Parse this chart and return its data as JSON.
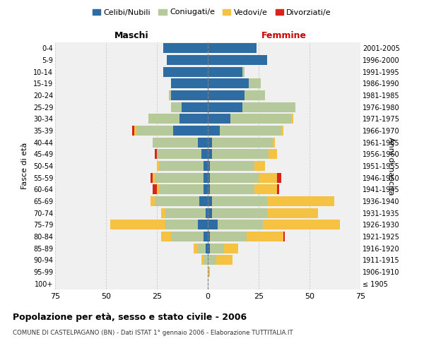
{
  "age_groups": [
    "100+",
    "95-99",
    "90-94",
    "85-89",
    "80-84",
    "75-79",
    "70-74",
    "65-69",
    "60-64",
    "55-59",
    "50-54",
    "45-49",
    "40-44",
    "35-39",
    "30-34",
    "25-29",
    "20-24",
    "15-19",
    "10-14",
    "5-9",
    "0-4"
  ],
  "birth_years": [
    "≤ 1905",
    "1906-1910",
    "1911-1915",
    "1916-1920",
    "1921-1925",
    "1926-1930",
    "1931-1935",
    "1936-1940",
    "1941-1945",
    "1946-1950",
    "1951-1955",
    "1956-1960",
    "1961-1965",
    "1966-1970",
    "1971-1975",
    "1976-1980",
    "1981-1985",
    "1986-1990",
    "1991-1995",
    "1996-2000",
    "2001-2005"
  ],
  "males": {
    "celibe": [
      0,
      0,
      0,
      1,
      2,
      5,
      1,
      4,
      2,
      2,
      2,
      3,
      5,
      17,
      14,
      13,
      18,
      18,
      22,
      20,
      22
    ],
    "coniugato": [
      0,
      0,
      2,
      4,
      16,
      16,
      20,
      22,
      22,
      24,
      22,
      22,
      22,
      18,
      15,
      5,
      1,
      0,
      0,
      0,
      0
    ],
    "vedovo": [
      0,
      0,
      1,
      2,
      5,
      27,
      2,
      2,
      1,
      1,
      1,
      0,
      0,
      1,
      0,
      0,
      0,
      0,
      0,
      0,
      0
    ],
    "divorziato": [
      0,
      0,
      0,
      0,
      0,
      0,
      0,
      0,
      2,
      1,
      0,
      1,
      0,
      1,
      0,
      0,
      0,
      0,
      0,
      0,
      0
    ]
  },
  "females": {
    "nubile": [
      0,
      0,
      0,
      1,
      1,
      5,
      2,
      2,
      1,
      1,
      1,
      2,
      2,
      6,
      11,
      17,
      18,
      20,
      17,
      29,
      24
    ],
    "coniugata": [
      0,
      0,
      4,
      7,
      18,
      22,
      27,
      27,
      22,
      24,
      22,
      28,
      30,
      30,
      30,
      26,
      10,
      6,
      1,
      0,
      0
    ],
    "vedova": [
      0,
      1,
      8,
      7,
      18,
      38,
      25,
      33,
      11,
      9,
      5,
      4,
      1,
      1,
      1,
      0,
      0,
      0,
      0,
      0,
      0
    ],
    "divorziata": [
      0,
      0,
      0,
      0,
      1,
      0,
      0,
      0,
      1,
      2,
      0,
      0,
      0,
      0,
      0,
      0,
      0,
      0,
      0,
      0,
      0
    ]
  },
  "colors": {
    "celibe": "#2e6da4",
    "coniugato": "#b5c99a",
    "vedovo": "#f5c242",
    "divorziato": "#d9231d"
  },
  "xlim": 75,
  "title": "Popolazione per età, sesso e stato civile - 2006",
  "subtitle": "COMUNE DI CASTELPAGANO (BN) - Dati ISTAT 1° gennaio 2006 - Elaborazione TUTTITALIA.IT",
  "xlabel_left": "Maschi",
  "xlabel_right": "Femmine",
  "ylabel_left": "Fasce di età",
  "ylabel_right": "Anni di nascita",
  "legend_labels": [
    "Celibi/Nubili",
    "Coniugati/e",
    "Vedovi/e",
    "Divorziati/e"
  ],
  "bg_color": "#ffffff",
  "grid_color": "#cccccc",
  "ax_bg_color": "#f0f0f0"
}
